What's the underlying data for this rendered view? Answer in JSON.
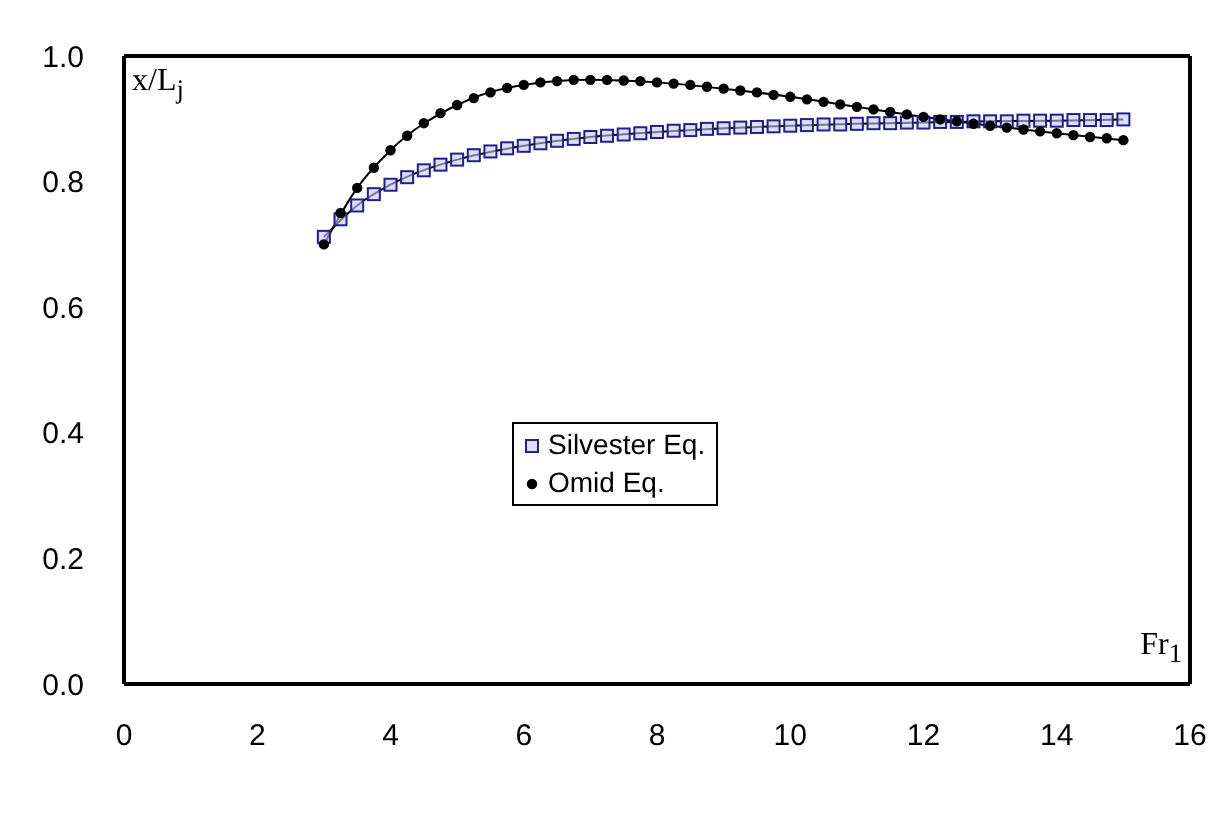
{
  "chart_data": {
    "type": "scatter",
    "xlabel": "Fr$_{1}$",
    "ylabel": "x/L$_{j}$",
    "xlim": [
      0,
      16
    ],
    "xticks": [
      0,
      2,
      4,
      6,
      8,
      10,
      12,
      14,
      16
    ],
    "ylim": [
      0,
      1
    ],
    "yticks": [
      {
        "value": 0,
        "label": "0.0"
      },
      {
        "value": 0.2,
        "label": "0.2"
      },
      {
        "value": 0.4,
        "label": "0.4"
      },
      {
        "value": 0.6,
        "label": "0.6"
      },
      {
        "value": 0.8,
        "label": "0.8"
      },
      {
        "value": 1,
        "label": "1.0"
      }
    ],
    "legend": "center",
    "series": [
      {
        "name": "Silvester Eq.",
        "marker": "square",
        "color": "#1f1f8f",
        "x": [
          3,
          3.25,
          3.5,
          3.75,
          4,
          4.25,
          4.5,
          4.75,
          5,
          5.25,
          5.5,
          5.75,
          6,
          6.25,
          6.5,
          6.75,
          7,
          7.25,
          7.5,
          7.75,
          8,
          8.25,
          8.5,
          8.75,
          9,
          9.25,
          9.5,
          9.75,
          10,
          10.25,
          10.5,
          10.75,
          11,
          11.25,
          11.5,
          11.75,
          12,
          12.25,
          12.5,
          12.75,
          13,
          13.25,
          13.5,
          13.75,
          14,
          14.25,
          14.5,
          14.75,
          15
        ],
        "values": [
          0.712,
          0.74,
          0.762,
          0.78,
          0.795,
          0.807,
          0.818,
          0.827,
          0.835,
          0.842,
          0.848,
          0.853,
          0.857,
          0.861,
          0.865,
          0.868,
          0.871,
          0.873,
          0.875,
          0.877,
          0.879,
          0.881,
          0.882,
          0.884,
          0.885,
          0.886,
          0.887,
          0.888,
          0.889,
          0.89,
          0.891,
          0.891,
          0.892,
          0.893,
          0.893,
          0.894,
          0.894,
          0.895,
          0.895,
          0.896,
          0.896,
          0.896,
          0.897,
          0.897,
          0.897,
          0.898,
          0.898,
          0.898,
          0.899
        ]
      },
      {
        "name": "Omid Eq.",
        "marker": "circle",
        "color": "#000000",
        "x": [
          3,
          3.25,
          3.5,
          3.75,
          4,
          4.25,
          4.5,
          4.75,
          5,
          5.25,
          5.5,
          5.75,
          6,
          6.25,
          6.5,
          6.75,
          7,
          7.25,
          7.5,
          7.75,
          8,
          8.25,
          8.5,
          8.75,
          9,
          9.25,
          9.5,
          9.75,
          10,
          10.25,
          10.5,
          10.75,
          11,
          11.25,
          11.5,
          11.75,
          12,
          12.25,
          12.5,
          12.75,
          13,
          13.25,
          13.5,
          13.75,
          14,
          14.25,
          14.5,
          14.75,
          15
        ],
        "values": [
          0.7,
          0.75,
          0.79,
          0.822,
          0.85,
          0.873,
          0.893,
          0.909,
          0.922,
          0.933,
          0.942,
          0.949,
          0.954,
          0.958,
          0.96,
          0.962,
          0.962,
          0.962,
          0.961,
          0.96,
          0.958,
          0.956,
          0.954,
          0.951,
          0.948,
          0.945,
          0.942,
          0.938,
          0.935,
          0.931,
          0.927,
          0.923,
          0.919,
          0.915,
          0.911,
          0.907,
          0.903,
          0.899,
          0.896,
          0.892,
          0.889,
          0.886,
          0.883,
          0.88,
          0.877,
          0.874,
          0.871,
          0.869,
          0.866
        ]
      },
      {
        "type": "line",
        "marker": "none",
        "line_style": "solid",
        "color": "#000000",
        "x": [
          3,
          3.5,
          4,
          5,
          6,
          7,
          8,
          9,
          10,
          11,
          12,
          13,
          14,
          15
        ],
        "values": [
          0.712,
          0.762,
          0.795,
          0.835,
          0.857,
          0.871,
          0.879,
          0.885,
          0.889,
          0.892,
          0.894,
          0.896,
          0.897,
          0.899
        ]
      },
      {
        "type": "line",
        "marker": "none",
        "line_style": "solid",
        "color": "#000000",
        "x": [
          3,
          3.5,
          4,
          5,
          6,
          7,
          8,
          9,
          10,
          11,
          12,
          13,
          14,
          15
        ],
        "values": [
          0.7,
          0.79,
          0.85,
          0.922,
          0.954,
          0.962,
          0.958,
          0.948,
          0.935,
          0.919,
          0.903,
          0.889,
          0.877,
          0.866
        ]
      }
    ]
  }
}
